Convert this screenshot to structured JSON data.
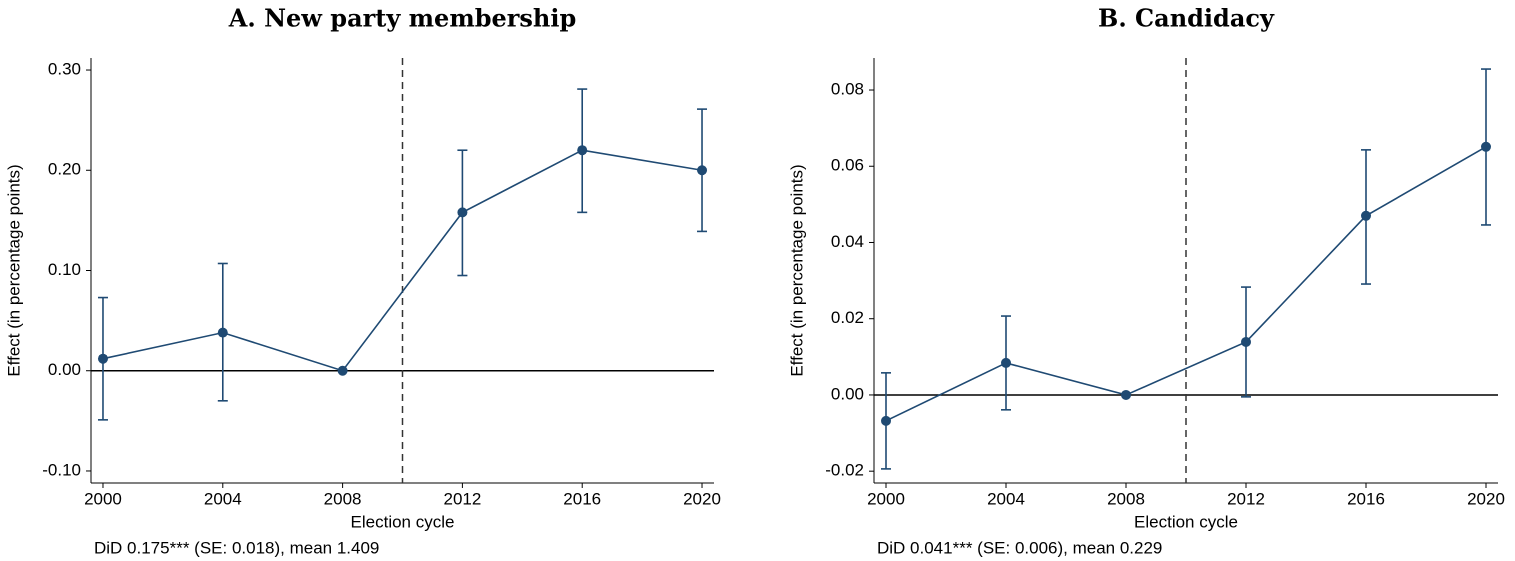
{
  "chart_data": [
    {
      "type": "line",
      "title": "A. New party membership",
      "xlabel": "Election cycle",
      "ylabel": "Effect (in percentage points)",
      "note": "DiD 0.175*** (SE: 0.018), mean 1.409",
      "x": [
        2000,
        2004,
        2008,
        2012,
        2016,
        2020
      ],
      "series": [
        {
          "name": "Effect",
          "color": "#1f4a73",
          "values": [
            0.012,
            0.038,
            0,
            0.158,
            0.22,
            0.2
          ],
          "lower": [
            -0.049,
            -0.03,
            0,
            0.095,
            0.158,
            0.139
          ],
          "upper": [
            0.073,
            0.107,
            0,
            0.22,
            0.281,
            0.261
          ]
        }
      ],
      "xlim": [
        1999.6,
        2020.4
      ],
      "xticks": [
        2000,
        2004,
        2008,
        2012,
        2016,
        2020
      ],
      "ylim": [
        -0.112,
        0.312
      ],
      "yticks": [
        {
          "value": -0.1,
          "label": "-0.10"
        },
        {
          "value": 0,
          "label": "0.00"
        },
        {
          "value": 0.1,
          "label": "0.10"
        },
        {
          "value": 0.2,
          "label": "0.20"
        },
        {
          "value": 0.3,
          "label": "0.30"
        }
      ],
      "vline": 2010,
      "hline": 0
    },
    {
      "type": "line",
      "title": "B. Candidacy",
      "xlabel": "Election cycle",
      "ylabel": "Effect (in percentage points)",
      "note": "DiD 0.041*** (SE: 0.006), mean 0.229",
      "x": [
        2000,
        2004,
        2008,
        2012,
        2016,
        2020
      ],
      "series": [
        {
          "name": "Effect",
          "color": "#1f4a73",
          "values": [
            -0.0068,
            0.0084,
            0,
            0.0139,
            0.047,
            0.0651
          ],
          "lower": [
            -0.0194,
            -0.0039,
            0,
            -0.0005,
            0.0291,
            0.0446
          ],
          "upper": [
            0.0058,
            0.0207,
            0,
            0.0283,
            0.0643,
            0.0855
          ]
        }
      ],
      "xlim": [
        1999.6,
        2020.4
      ],
      "xticks": [
        2000,
        2004,
        2008,
        2012,
        2016,
        2020
      ],
      "ylim": [
        -0.0231,
        0.0884
      ],
      "yticks": [
        -0.02,
        {
          "value": 0,
          "label": "0.00"
        },
        0.02,
        0.04,
        0.06,
        0.08
      ],
      "vline": 2010,
      "hline": 0
    }
  ]
}
